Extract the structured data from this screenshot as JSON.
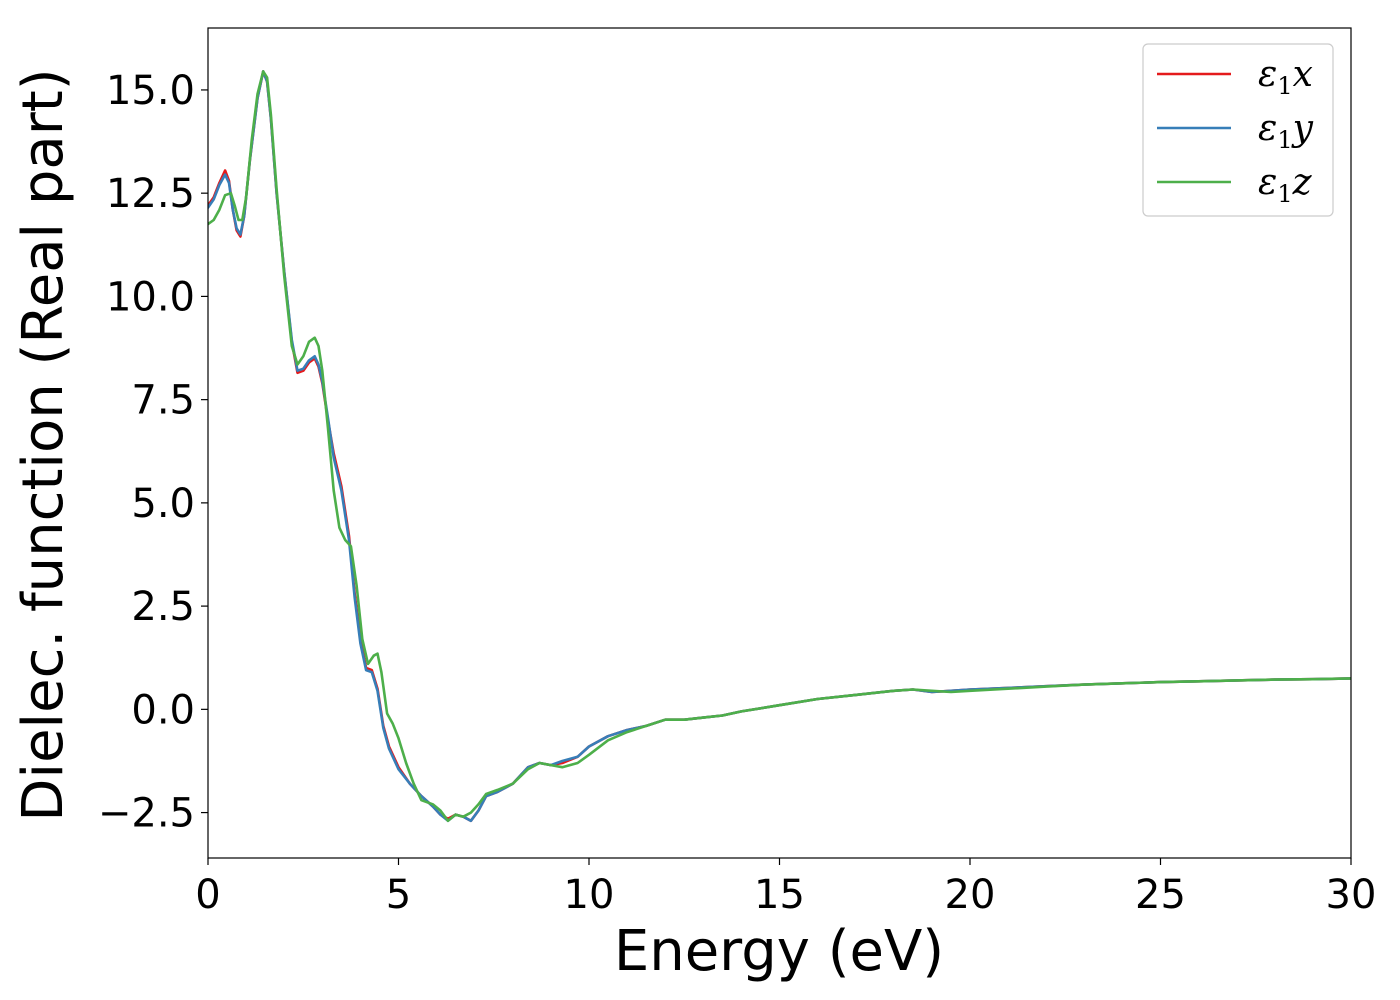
{
  "chart_data": {
    "type": "line",
    "title": "",
    "xlabel": "Energy (eV)",
    "ylabel": "Dielec. function (Real part)",
    "xlim": [
      0,
      30
    ],
    "ylim": [
      -3.6,
      16.5
    ],
    "xticks": [
      0,
      5,
      10,
      15,
      20,
      25,
      30
    ],
    "xtick_labels": [
      "0",
      "5",
      "10",
      "15",
      "20",
      "25",
      "30"
    ],
    "yticks": [
      -2.5,
      0.0,
      2.5,
      5.0,
      7.5,
      10.0,
      12.5,
      15.0
    ],
    "ytick_labels": [
      "−2.5",
      "0.0",
      "2.5",
      "5.0",
      "7.5",
      "10.0",
      "12.5",
      "15.0"
    ],
    "grid": false,
    "legend_position": "top-right",
    "series": [
      {
        "name": "ε₁x",
        "legend_main": "ε",
        "legend_sub": "1",
        "legend_tail": "x",
        "color": "#e41a1c",
        "x": [
          0,
          0.15,
          0.3,
          0.45,
          0.55,
          0.65,
          0.75,
          0.85,
          0.95,
          1.1,
          1.3,
          1.45,
          1.55,
          1.65,
          1.8,
          2.0,
          2.2,
          2.35,
          2.5,
          2.65,
          2.8,
          2.9,
          3.0,
          3.15,
          3.3,
          3.5,
          3.7,
          3.85,
          4.0,
          4.15,
          4.3,
          4.45,
          4.6,
          4.75,
          5.0,
          5.3,
          5.6,
          5.9,
          6.1,
          6.3,
          6.5,
          6.7,
          6.9,
          7.1,
          7.3,
          7.6,
          8.0,
          8.4,
          8.7,
          9.0,
          9.3,
          9.7,
          10.0,
          10.5,
          11.0,
          11.5,
          12.0,
          12.5,
          13.0,
          13.5,
          14.0,
          15.0,
          16.0,
          17.0,
          18.0,
          18.5,
          19.0,
          19.5,
          20.0,
          21.0,
          22.0,
          23.0,
          24.0,
          25.0,
          26.0,
          27.0,
          28.0,
          29.0,
          30.0
        ],
        "values": [
          12.2,
          12.4,
          12.75,
          13.05,
          12.8,
          12.1,
          11.6,
          11.45,
          11.95,
          13.3,
          14.8,
          15.45,
          15.2,
          14.3,
          12.5,
          10.6,
          8.9,
          8.15,
          8.2,
          8.4,
          8.5,
          8.3,
          7.9,
          7.0,
          6.2,
          5.4,
          4.2,
          2.8,
          1.7,
          1.0,
          0.95,
          0.5,
          -0.4,
          -0.9,
          -1.4,
          -1.8,
          -2.1,
          -2.35,
          -2.55,
          -2.65,
          -2.55,
          -2.6,
          -2.7,
          -2.45,
          -2.1,
          -2.0,
          -1.8,
          -1.4,
          -1.3,
          -1.35,
          -1.3,
          -1.15,
          -0.9,
          -0.65,
          -0.5,
          -0.4,
          -0.25,
          -0.25,
          -0.2,
          -0.15,
          -0.05,
          0.1,
          0.25,
          0.35,
          0.45,
          0.48,
          0.42,
          0.45,
          0.48,
          0.52,
          0.56,
          0.6,
          0.63,
          0.66,
          0.68,
          0.7,
          0.72,
          0.73,
          0.75
        ]
      },
      {
        "name": "ε₁y",
        "legend_main": "ε",
        "legend_sub": "1",
        "legend_tail": "y",
        "color": "#377eb8",
        "x": [
          0,
          0.15,
          0.3,
          0.45,
          0.55,
          0.65,
          0.75,
          0.85,
          0.95,
          1.1,
          1.3,
          1.45,
          1.55,
          1.65,
          1.8,
          2.0,
          2.2,
          2.35,
          2.5,
          2.65,
          2.8,
          2.9,
          3.0,
          3.15,
          3.3,
          3.5,
          3.7,
          3.85,
          4.0,
          4.15,
          4.3,
          4.45,
          4.6,
          4.75,
          5.0,
          5.3,
          5.6,
          5.9,
          6.1,
          6.3,
          6.5,
          6.7,
          6.9,
          7.1,
          7.3,
          7.6,
          8.0,
          8.4,
          8.7,
          9.0,
          9.3,
          9.7,
          10.0,
          10.5,
          11.0,
          11.5,
          12.0,
          12.5,
          13.0,
          13.5,
          14.0,
          15.0,
          16.0,
          17.0,
          18.0,
          18.5,
          19.0,
          19.5,
          20.0,
          21.0,
          22.0,
          23.0,
          24.0,
          25.0,
          26.0,
          27.0,
          28.0,
          29.0,
          30.0
        ],
        "values": [
          12.15,
          12.35,
          12.7,
          12.95,
          12.75,
          12.1,
          11.65,
          11.5,
          11.95,
          13.3,
          14.8,
          15.45,
          15.2,
          14.3,
          12.5,
          10.6,
          8.95,
          8.2,
          8.25,
          8.45,
          8.55,
          8.35,
          7.95,
          7.05,
          6.1,
          5.3,
          4.1,
          2.7,
          1.6,
          0.95,
          0.9,
          0.45,
          -0.45,
          -0.95,
          -1.45,
          -1.8,
          -2.1,
          -2.35,
          -2.55,
          -2.7,
          -2.55,
          -2.6,
          -2.7,
          -2.45,
          -2.1,
          -2.0,
          -1.8,
          -1.4,
          -1.3,
          -1.35,
          -1.25,
          -1.15,
          -0.9,
          -0.65,
          -0.5,
          -0.4,
          -0.25,
          -0.25,
          -0.2,
          -0.15,
          -0.05,
          0.1,
          0.25,
          0.35,
          0.45,
          0.48,
          0.42,
          0.45,
          0.48,
          0.52,
          0.56,
          0.6,
          0.63,
          0.66,
          0.68,
          0.7,
          0.72,
          0.73,
          0.75
        ]
      },
      {
        "name": "ε₁z",
        "legend_main": "ε",
        "legend_sub": "1",
        "legend_tail": "z",
        "color": "#4daf4a",
        "x": [
          0,
          0.15,
          0.3,
          0.45,
          0.6,
          0.7,
          0.8,
          0.9,
          1.0,
          1.15,
          1.3,
          1.45,
          1.55,
          1.65,
          1.8,
          2.0,
          2.2,
          2.35,
          2.5,
          2.65,
          2.8,
          2.9,
          3.0,
          3.15,
          3.3,
          3.45,
          3.6,
          3.75,
          3.9,
          4.05,
          4.2,
          4.35,
          4.45,
          4.55,
          4.7,
          4.85,
          5.0,
          5.2,
          5.4,
          5.6,
          5.9,
          6.1,
          6.3,
          6.5,
          6.7,
          6.9,
          7.1,
          7.3,
          7.6,
          8.0,
          8.4,
          8.7,
          9.0,
          9.3,
          9.7,
          10.0,
          10.5,
          11.0,
          11.5,
          12.0,
          12.5,
          13.0,
          13.5,
          14.0,
          15.0,
          16.0,
          17.0,
          18.0,
          18.5,
          19.0,
          19.5,
          20.0,
          21.0,
          22.0,
          23.0,
          24.0,
          25.0,
          26.0,
          27.0,
          28.0,
          29.0,
          30.0
        ],
        "values": [
          11.75,
          11.85,
          12.1,
          12.45,
          12.5,
          12.2,
          11.85,
          11.85,
          12.4,
          13.8,
          14.9,
          15.45,
          15.3,
          14.4,
          12.6,
          10.5,
          8.8,
          8.35,
          8.55,
          8.9,
          9.0,
          8.8,
          8.2,
          6.8,
          5.3,
          4.4,
          4.1,
          3.95,
          3.0,
          1.7,
          1.1,
          1.3,
          1.35,
          0.9,
          -0.1,
          -0.35,
          -0.7,
          -1.3,
          -1.8,
          -2.2,
          -2.3,
          -2.45,
          -2.7,
          -2.55,
          -2.6,
          -2.5,
          -2.3,
          -2.05,
          -1.95,
          -1.8,
          -1.45,
          -1.3,
          -1.35,
          -1.4,
          -1.3,
          -1.1,
          -0.75,
          -0.55,
          -0.4,
          -0.25,
          -0.25,
          -0.2,
          -0.15,
          -0.05,
          0.1,
          0.25,
          0.35,
          0.45,
          0.48,
          0.45,
          0.42,
          0.45,
          0.5,
          0.55,
          0.6,
          0.63,
          0.66,
          0.68,
          0.7,
          0.72,
          0.73,
          0.75
        ]
      }
    ]
  }
}
